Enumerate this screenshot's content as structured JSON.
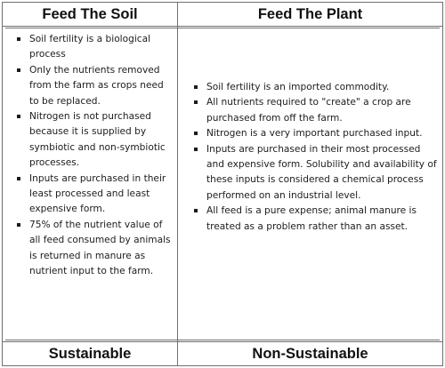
{
  "table": {
    "left": {
      "heading": "Feed The Soil",
      "points": [
        "Soil fertility is a biological process",
        "Only the nutrients removed from the farm as crops need to be replaced.",
        "Nitrogen is not purchased because it is supplied by symbiotic and non-symbiotic processes.",
        "Inputs are purchased in their least processed and least expensive form.",
        "75% of the nutrient value of all feed consumed by animals is returned in manure as nutrient input to the farm."
      ],
      "footer": "Sustainable"
    },
    "right": {
      "heading": "Feed The Plant",
      "points": [
        "Soil fertility is an imported commodity.",
        "All nutrients required to \"create\" a crop are purchased from off the farm.",
        "Nitrogen is a very important purchased input.",
        "Inputs are purchased in their most processed and expensive form. Solubility and availability of these inputs is considered a chemical process performed on an industrial level.",
        "All feed is a pure expense; animal manure is treated as a problem rather than an asset."
      ],
      "footer": "Non-Sustainable"
    }
  }
}
